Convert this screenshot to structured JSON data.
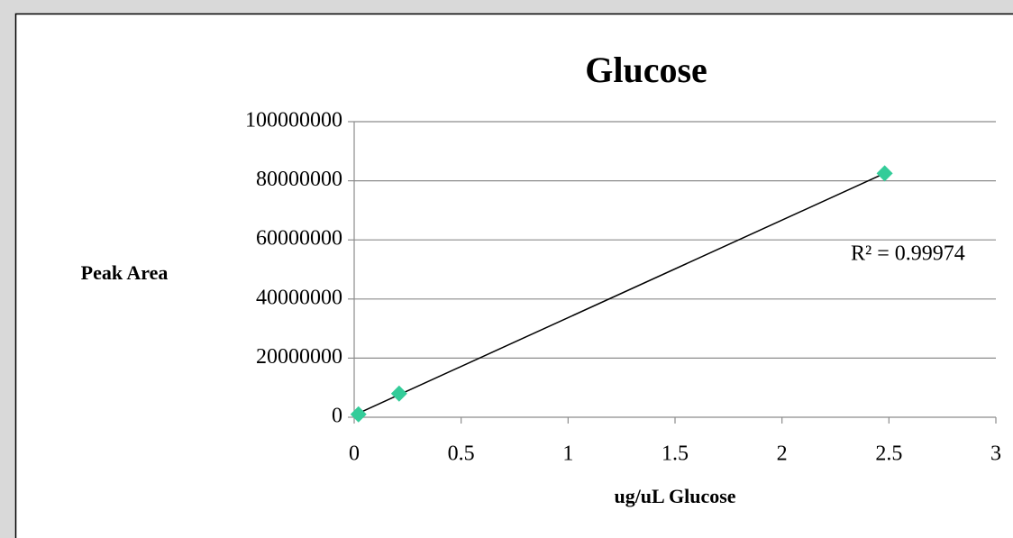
{
  "chart_data": {
    "type": "scatter",
    "title": "Glucose",
    "x_label": "ug/uL Glucose",
    "y_label": "Peak Area",
    "annotation": "R² = 0.99974",
    "series": [
      {
        "name": "Glucose",
        "color": "#33cc99",
        "x": [
          0.02,
          0.21,
          2.48
        ],
        "values": [
          1000000,
          8000000,
          82500000
        ]
      }
    ],
    "trendline": "linear",
    "xlim": [
      0,
      3
    ],
    "xticks": [
      0,
      0.5,
      1,
      1.5,
      2,
      2.5,
      3
    ],
    "ylim": [
      0,
      100000000
    ],
    "yticks": [
      0,
      20000000,
      40000000,
      60000000,
      80000000,
      100000000
    ],
    "grid": true
  }
}
